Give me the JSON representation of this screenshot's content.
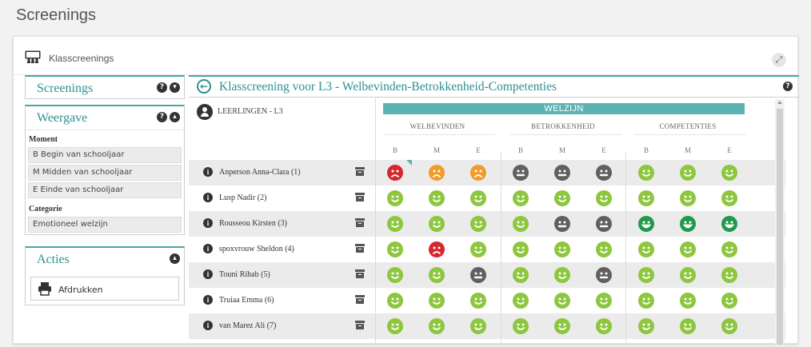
{
  "page": {
    "title": "Screenings"
  },
  "card": {
    "title": "Klasscreenings",
    "expand_icon": "expand-icon"
  },
  "side": {
    "screenings": {
      "label": "Screenings"
    },
    "weergave": {
      "label": "Weergave",
      "moment_label": "Moment",
      "moments": [
        "B Begin van schooljaar",
        "M Midden van schooljaar",
        "E Einde van schooljaar"
      ],
      "categorie_label": "Categorie",
      "categorie_value": "Emotioneel welzijn"
    },
    "acties": {
      "label": "Acties",
      "print_label": "Afdrukken"
    }
  },
  "main": {
    "title": "Klasscreening voor L3 - Welbevinden-Betrokkenheid-Competenties",
    "students_label": "LEERLINGEN - L3",
    "group_title": "WELZIJN",
    "categories": [
      "WELBEVINDEN",
      "BETROKKENHEID",
      "COMPETENTIES"
    ],
    "moments": [
      "B",
      "M",
      "E"
    ],
    "students": [
      {
        "name": "Anperson Anna-Clara (1)",
        "scores": [
          "red",
          "orange",
          "orange",
          "gray",
          "gray",
          "gray",
          "lightgreen",
          "lightgreen",
          "lightgreen"
        ]
      },
      {
        "name": "Lusp Nadir (2)",
        "scores": [
          "lightgreen",
          "lightgreen",
          "lightgreen",
          "lightgreen",
          "lightgreen",
          "lightgreen",
          "lightgreen",
          "lightgreen",
          "lightgreen"
        ]
      },
      {
        "name": "Rousseou Kirsten (3)",
        "scores": [
          "lightgreen",
          "lightgreen",
          "lightgreen",
          "lightgreen",
          "gray",
          "gray",
          "darkgreen",
          "darkgreen",
          "darkgreen"
        ]
      },
      {
        "name": "spoxvrouw Sheldon (4)",
        "scores": [
          "lightgreen",
          "red",
          "lightgreen",
          "lightgreen",
          "lightgreen",
          "lightgreen",
          "lightgreen",
          "lightgreen",
          "lightgreen"
        ]
      },
      {
        "name": "Touni Rihab (5)",
        "scores": [
          "lightgreen",
          "lightgreen",
          "gray",
          "lightgreen",
          "lightgreen",
          "gray",
          "lightgreen",
          "lightgreen",
          "lightgreen"
        ]
      },
      {
        "name": "Truiaa Emma (6)",
        "scores": [
          "lightgreen",
          "lightgreen",
          "lightgreen",
          "lightgreen",
          "lightgreen",
          "lightgreen",
          "lightgreen",
          "lightgreen",
          "lightgreen"
        ]
      },
      {
        "name": "van Marez Ali (7)",
        "scores": [
          "lightgreen",
          "lightgreen",
          "lightgreen",
          "lightgreen",
          "lightgreen",
          "lightgreen",
          "lightgreen",
          "lightgreen",
          "lightgreen"
        ]
      }
    ]
  },
  "colors": {
    "accent": "#2f8f8f",
    "header_bar": "#5cb3b4",
    "red": "#d8262f",
    "orange": "#f39a2c",
    "gray": "#606060",
    "lightgreen": "#8dc63f",
    "darkgreen": "#1f9a4a"
  },
  "face_mood": {
    "red": "sad",
    "orange": "sad",
    "gray": "neutral",
    "lightgreen": "happy",
    "darkgreen": "very-happy"
  }
}
